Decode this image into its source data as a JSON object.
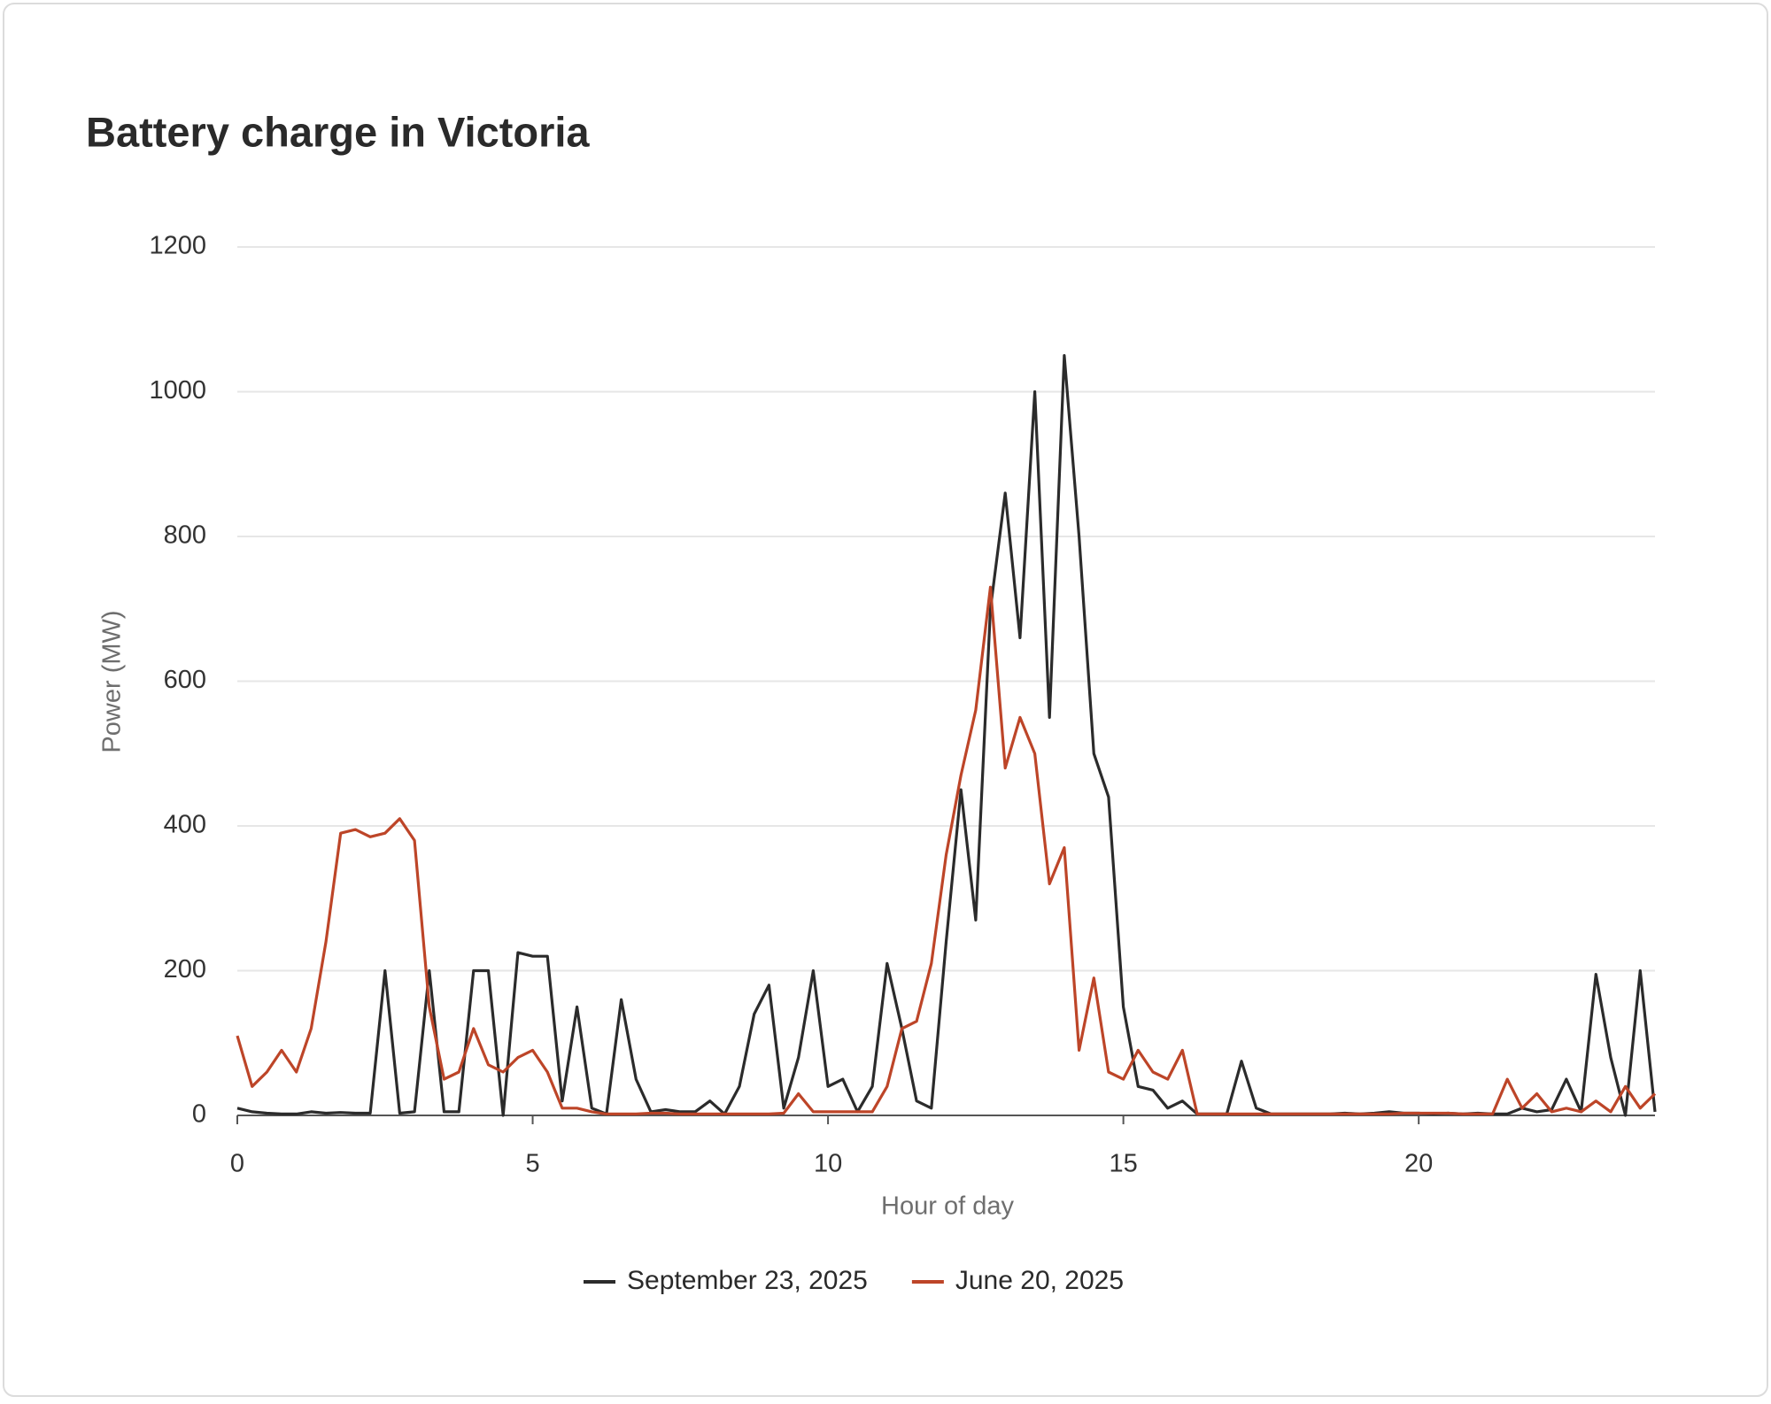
{
  "chart_data": {
    "type": "line",
    "title": "Battery charge in Victoria",
    "xlabel": "Hour of day",
    "ylabel": "Power (MW)",
    "xlim": [
      0,
      24
    ],
    "xticks": [
      0,
      5,
      10,
      15,
      20
    ],
    "ylim": [
      0,
      1200
    ],
    "yticks": [
      0,
      200,
      400,
      600,
      800,
      1000,
      1200
    ],
    "grid": true,
    "legend": "bottom",
    "x": [
      0,
      0.25,
      0.5,
      0.75,
      1,
      1.25,
      1.5,
      1.75,
      2,
      2.25,
      2.5,
      2.75,
      3,
      3.25,
      3.5,
      3.75,
      4,
      4.25,
      4.5,
      4.75,
      5,
      5.25,
      5.5,
      5.75,
      6,
      6.25,
      6.5,
      6.75,
      7,
      7.25,
      7.5,
      7.75,
      8,
      8.25,
      8.5,
      8.75,
      9,
      9.25,
      9.5,
      9.75,
      10,
      10.25,
      10.5,
      10.75,
      11,
      11.25,
      11.5,
      11.75,
      12,
      12.25,
      12.5,
      12.75,
      13,
      13.25,
      13.5,
      13.75,
      14,
      14.25,
      14.5,
      14.75,
      15,
      15.25,
      15.5,
      15.75,
      16,
      16.25,
      16.5,
      16.75,
      17,
      17.25,
      17.5,
      17.75,
      18,
      18.25,
      18.5,
      18.75,
      19,
      19.25,
      19.5,
      19.75,
      20,
      20.25,
      20.5,
      20.75,
      21,
      21.25,
      21.5,
      21.75,
      22,
      22.25,
      22.5,
      22.75,
      23,
      23.25,
      23.5,
      23.75,
      24
    ],
    "series": [
      {
        "name": "September 23, 2025",
        "color": "#2b2b2b",
        "values": [
          10,
          5,
          3,
          2,
          2,
          5,
          3,
          4,
          3,
          3,
          200,
          3,
          5,
          200,
          5,
          5,
          200,
          200,
          0,
          225,
          220,
          220,
          20,
          150,
          10,
          2,
          160,
          50,
          5,
          8,
          5,
          5,
          20,
          2,
          40,
          140,
          180,
          10,
          80,
          200,
          40,
          50,
          5,
          40,
          210,
          120,
          20,
          10,
          240,
          450,
          270,
          700,
          860,
          660,
          1000,
          550,
          1050,
          800,
          500,
          440,
          150,
          40,
          35,
          10,
          20,
          2,
          2,
          2,
          75,
          10,
          2,
          2,
          2,
          2,
          2,
          3,
          2,
          3,
          5,
          3,
          3,
          2,
          3,
          2,
          3,
          2,
          2,
          10,
          5,
          8,
          50,
          5,
          195,
          80,
          0,
          200,
          5
        ]
      },
      {
        "name": "June 20, 2025",
        "color": "#bd4528",
        "values": [
          110,
          40,
          60,
          90,
          60,
          120,
          240,
          390,
          395,
          385,
          390,
          410,
          380,
          150,
          50,
          60,
          120,
          70,
          60,
          80,
          90,
          60,
          10,
          10,
          5,
          2,
          2,
          2,
          3,
          3,
          2,
          2,
          2,
          2,
          2,
          2,
          2,
          3,
          30,
          5,
          5,
          5,
          5,
          5,
          40,
          120,
          130,
          210,
          360,
          470,
          560,
          730,
          480,
          550,
          500,
          320,
          370,
          90,
          190,
          60,
          50,
          90,
          60,
          50,
          90,
          2,
          2,
          2,
          2,
          2,
          2,
          2,
          2,
          2,
          2,
          2,
          2,
          2,
          2,
          3,
          3,
          3,
          3,
          2,
          2,
          2,
          50,
          10,
          30,
          5,
          10,
          5,
          20,
          5,
          40,
          10,
          30
        ]
      }
    ]
  }
}
